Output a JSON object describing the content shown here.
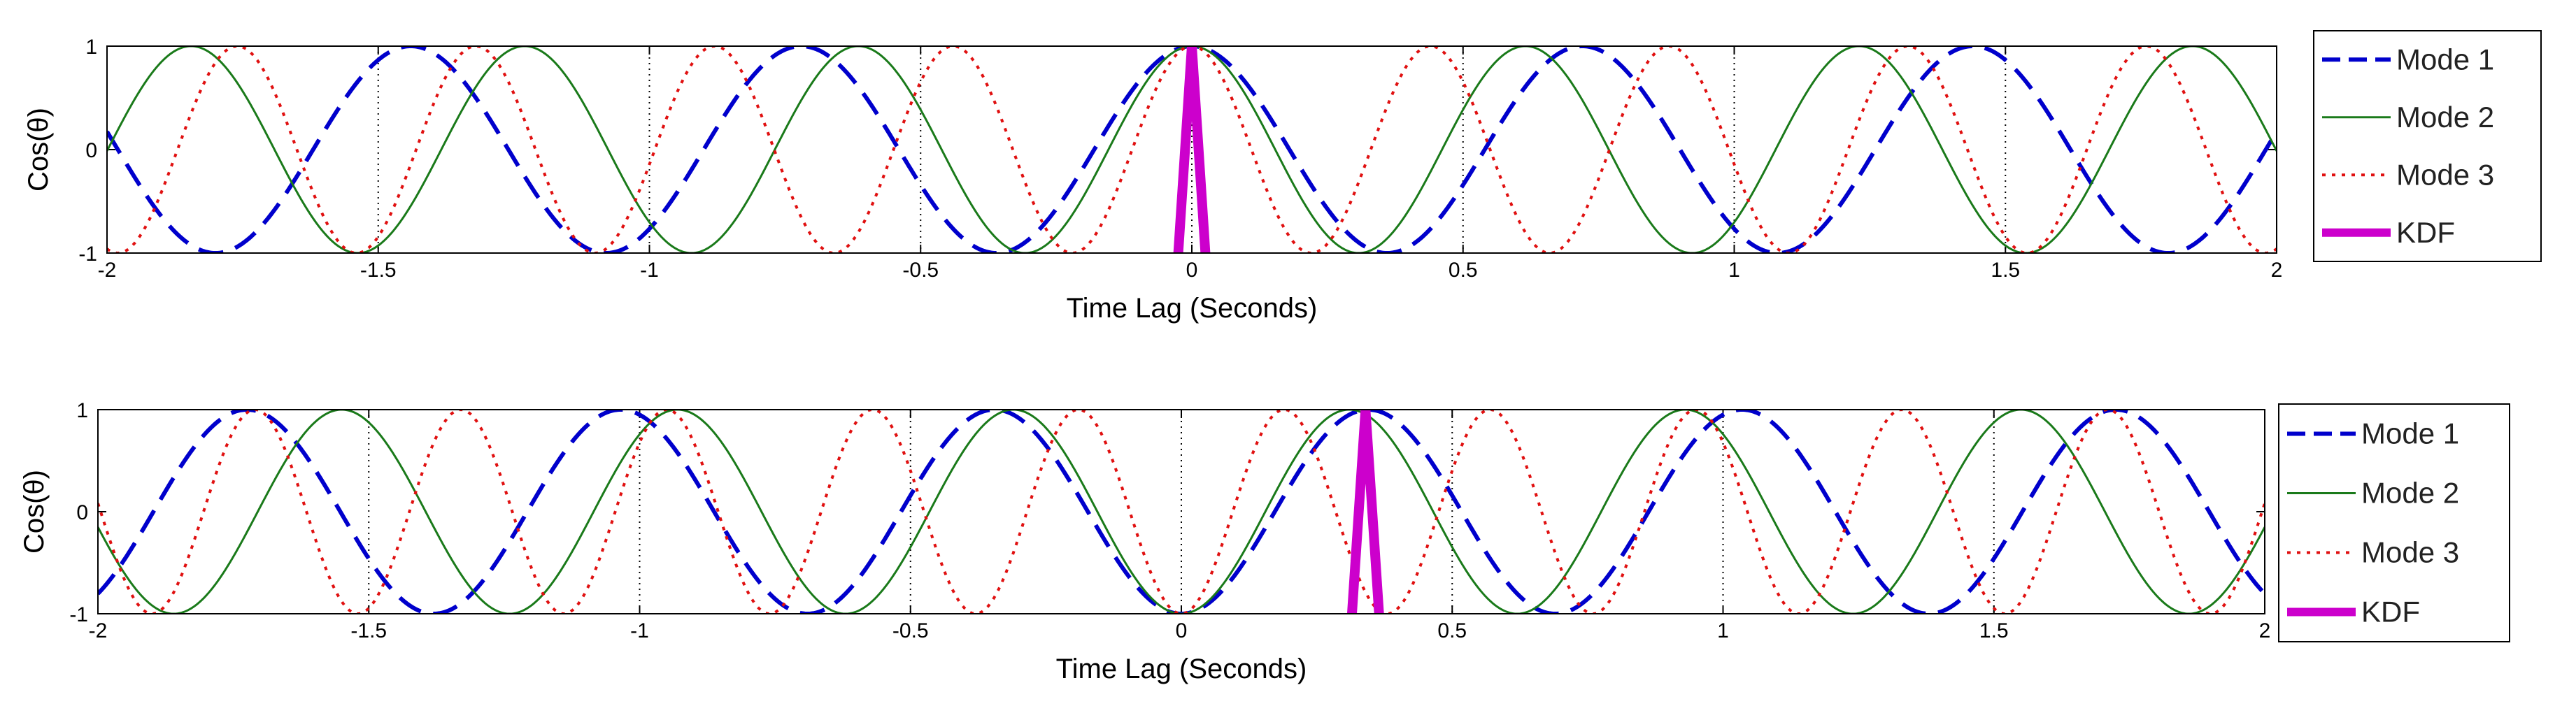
{
  "chart_data": [
    {
      "type": "line",
      "xlabel": "Time Lag (Seconds)",
      "ylabel": "Cos(θ)",
      "xlim": [
        -2,
        2
      ],
      "ylim": [
        -1,
        1
      ],
      "xticks": [
        "-2",
        "-1.5",
        "-1",
        "-0.5",
        "0",
        "0.5",
        "1",
        "1.5",
        "2"
      ],
      "xtick_values": [
        -2,
        -1.5,
        -1,
        -0.5,
        0,
        0.5,
        1,
        1.5,
        2
      ],
      "yticks": [
        "-1",
        "0",
        "1"
      ],
      "ytick_values": [
        -1,
        0,
        1
      ],
      "grid": "dotted vertical lines at x ticks",
      "legend_position": "right",
      "series": [
        {
          "name": "Mode 1",
          "color": "#0000cc",
          "style": "dashed",
          "kind": "cosine",
          "period": 0.72,
          "peak_at": 0.0
        },
        {
          "name": "Mode 2",
          "color": "#1a7a1a",
          "style": "solid-thin",
          "kind": "cosine",
          "period": 0.615,
          "peak_at": 0.0
        },
        {
          "name": "Mode 3",
          "color": "#e01010",
          "style": "dotted",
          "kind": "cosine",
          "period": 0.44,
          "peak_at": 0.0
        },
        {
          "name": "KDF",
          "color": "#cc00cc",
          "style": "solid-thick",
          "kind": "spike",
          "center": 0.0,
          "half_width": 0.025
        }
      ]
    },
    {
      "type": "line",
      "xlabel": "Time Lag (Seconds)",
      "ylabel": "Cos(θ)",
      "xlim": [
        -2,
        2
      ],
      "ylim": [
        -1,
        1
      ],
      "xticks": [
        "-2",
        "-1.5",
        "-1",
        "-0.5",
        "0",
        "0.5",
        "1",
        "1.5",
        "2"
      ],
      "xtick_values": [
        -2,
        -1.5,
        -1,
        -0.5,
        0,
        0.5,
        1,
        1.5,
        2
      ],
      "yticks": [
        "-1",
        "0",
        "1"
      ],
      "ytick_values": [
        -1,
        0,
        1
      ],
      "grid": "dotted vertical lines at x ticks",
      "legend_position": "right",
      "series": [
        {
          "name": "Mode 1",
          "color": "#0000cc",
          "style": "dashed",
          "kind": "cosine",
          "period": 0.69,
          "peak_at": 0.345
        },
        {
          "name": "Mode 2",
          "color": "#1a7a1a",
          "style": "solid-thin",
          "kind": "cosine",
          "period": 0.62,
          "peak_at": 0.31
        },
        {
          "name": "Mode 3",
          "color": "#e01010",
          "style": "dotted",
          "kind": "cosine",
          "period": 0.38,
          "peak_at": 0.19
        },
        {
          "name": "KDF",
          "color": "#cc00cc",
          "style": "solid-thick",
          "kind": "spike",
          "center": 0.34,
          "half_width": 0.025
        }
      ]
    }
  ]
}
